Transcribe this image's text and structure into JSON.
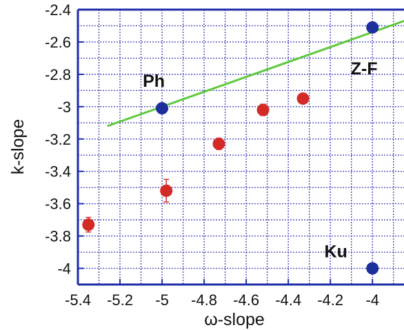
{
  "chart_data": {
    "type": "scatter",
    "xlabel": "ω-slope",
    "ylabel": "k-slope",
    "xlim": [
      -5.4,
      -3.85
    ],
    "ylim": [
      -4.1,
      -2.4
    ],
    "grid": true,
    "x_ticks": [
      {
        "value": -5.4,
        "label": "-5.4"
      },
      {
        "value": -5.2,
        "label": "-5.2"
      },
      {
        "value": -5.0,
        "label": "-5"
      },
      {
        "value": -4.8,
        "label": "-4.8"
      },
      {
        "value": -4.6,
        "label": "-4.6"
      },
      {
        "value": -4.4,
        "label": "-4.4"
      },
      {
        "value": -4.2,
        "label": "-4.2"
      },
      {
        "value": -4.0,
        "label": "-4"
      }
    ],
    "y_ticks": [
      {
        "value": -2.4,
        "label": "-2.4"
      },
      {
        "value": -2.6,
        "label": "-2.6"
      },
      {
        "value": -2.8,
        "label": "-2.8"
      },
      {
        "value": -3.0,
        "label": "-3"
      },
      {
        "value": -3.2,
        "label": "-3.2"
      },
      {
        "value": -3.4,
        "label": "-3.4"
      },
      {
        "value": -3.6,
        "label": "-3.6"
      },
      {
        "value": -3.8,
        "label": "-3.8"
      },
      {
        "value": -4.0,
        "label": "-4"
      }
    ],
    "measured_points": {
      "color": "#d42a26",
      "points": [
        {
          "x": -5.35,
          "y": -3.73,
          "err": 0.045
        },
        {
          "x": -4.98,
          "y": -3.52,
          "err": 0.07
        },
        {
          "x": -4.73,
          "y": -3.23,
          "err": 0.035
        },
        {
          "x": -4.52,
          "y": -3.02,
          "err": 0.035
        },
        {
          "x": -4.33,
          "y": -2.95,
          "err": 0.02
        }
      ]
    },
    "model_points": {
      "color": "#1c2f9c",
      "points": [
        {
          "x": -5.0,
          "y": -3.01,
          "label": "Ph"
        },
        {
          "x": -4.0,
          "y": -2.51,
          "label": "Z-F"
        },
        {
          "x": -4.0,
          "y": -4.0,
          "label": "Ku"
        }
      ]
    },
    "line": {
      "color": "#5ec93b",
      "points": [
        {
          "x": -5.26,
          "y": -3.12
        },
        {
          "x": -3.85,
          "y": -2.47
        }
      ]
    },
    "axis_color": "#1c2ca8",
    "grid_color": "#4c4cc0"
  }
}
